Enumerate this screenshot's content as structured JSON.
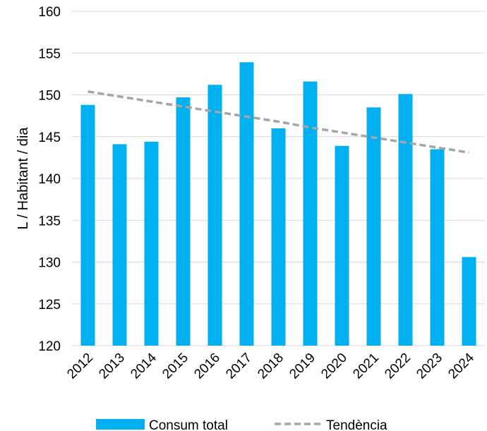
{
  "chart_data": {
    "type": "bar",
    "title": "",
    "xlabel": "",
    "ylabel": "L / Habitant / dia",
    "categories": [
      "2012",
      "2013",
      "2014",
      "2015",
      "2016",
      "2017",
      "2018",
      "2019",
      "2020",
      "2021",
      "2022",
      "2023",
      "2024"
    ],
    "series": [
      {
        "name": "Consum total",
        "type": "bar",
        "color": "#00B0F0",
        "values": [
          148.8,
          144.1,
          144.4,
          149.7,
          151.2,
          153.9,
          146.0,
          151.6,
          143.9,
          148.5,
          150.1,
          143.5,
          130.6
        ]
      },
      {
        "name": "Tendència",
        "type": "linear-trendline",
        "style": "dashed",
        "color": "#A6A6A6",
        "values": [
          150.4,
          149.8,
          149.2,
          148.6,
          148.0,
          147.4,
          146.8,
          146.1,
          145.5,
          144.9,
          144.3,
          143.7,
          143.1
        ]
      }
    ],
    "ylim": [
      120,
      160
    ],
    "yticks": [
      120,
      125,
      130,
      135,
      140,
      145,
      150,
      155,
      160
    ],
    "grid": true,
    "legend": "bottom"
  }
}
